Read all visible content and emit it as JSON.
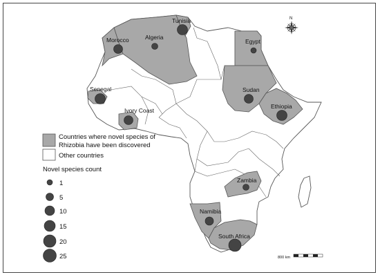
{
  "legend": {
    "discovered_label_line1": "Countries where novel species of",
    "discovered_label_line2": "Rhizobia have been discovered",
    "other_label": "Other countries",
    "count_title": "Novel species count",
    "sizes": [
      "1",
      "5",
      "10",
      "15",
      "20",
      "25"
    ]
  },
  "countries": [
    {
      "name": "Tunisia",
      "count": 9
    },
    {
      "name": "Morocco",
      "count": 6
    },
    {
      "name": "Algeria",
      "count": 3
    },
    {
      "name": "Egypt",
      "count": 2
    },
    {
      "name": "Senegal",
      "count": 10
    },
    {
      "name": "Ivory Coast",
      "count": 6
    },
    {
      "name": "Sudan",
      "count": 7
    },
    {
      "name": "Ethiopia",
      "count": 12
    },
    {
      "name": "Zambia",
      "count": 3
    },
    {
      "name": "Namibia",
      "count": 5
    },
    {
      "name": "South Africa",
      "count": 18
    }
  ],
  "north_label": "N",
  "scale_label": "800 km",
  "colors": {
    "discovered": "#a8a8a8",
    "other": "#ffffff",
    "symbol": "#444444",
    "border": "#555555"
  }
}
